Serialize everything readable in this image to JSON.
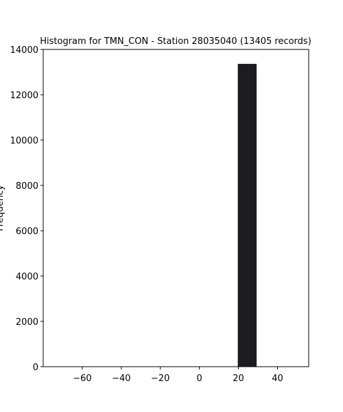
{
  "chart_data": {
    "type": "bar",
    "title": "Histogram for TMN_CON - Station 28035040 (13405 records)",
    "xlabel": "",
    "ylabel": "Frequency",
    "xlim": [
      -80,
      56
    ],
    "ylim": [
      0,
      14000
    ],
    "xticks": [
      -60,
      -40,
      -20,
      0,
      20,
      40
    ],
    "yticks": [
      0,
      2000,
      4000,
      6000,
      8000,
      10000,
      12000,
      14000
    ],
    "bins": [
      {
        "start": 19.5,
        "end": 29.5,
        "value": 13380
      }
    ],
    "bar_color": "#1c1c1f",
    "bar_edge_color": "#ffffff",
    "grid": false,
    "legend": false
  }
}
